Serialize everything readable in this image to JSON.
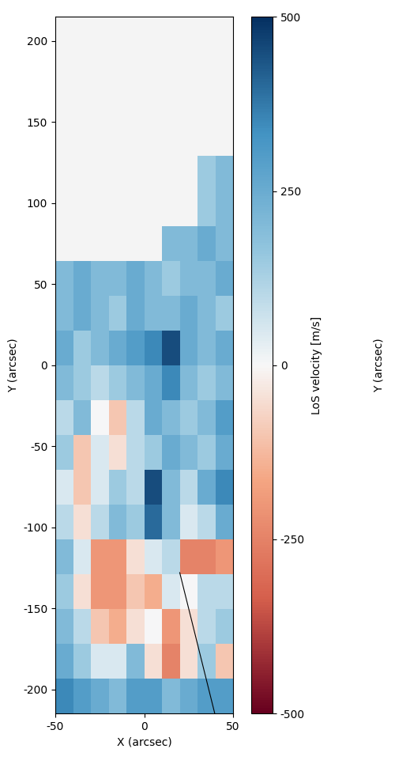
{
  "chart_data": {
    "type": "heatmap",
    "xlabel": "X (arcsec)",
    "ylabel": "Y (arcsec)",
    "xlim": [
      -50,
      50
    ],
    "xticks": [
      -50,
      0,
      50
    ],
    "ylim": [
      -215,
      215
    ],
    "yticks": [
      -200,
      -150,
      -100,
      -50,
      0,
      50,
      100,
      150,
      200
    ],
    "x_edges": [
      -50,
      -40,
      -30,
      -20,
      -10,
      0,
      10,
      20,
      30,
      40,
      50
    ],
    "y_edges": [
      -215,
      -193.5,
      -172,
      -150.5,
      -129,
      -107.5,
      -86,
      -64.5,
      -43,
      -21.5,
      0,
      21.5,
      43,
      64.5,
      86,
      107.5,
      129,
      150.5,
      172,
      193.5,
      215
    ],
    "cells": [
      [
        350,
        300,
        250,
        200,
        300,
        300,
        200,
        250,
        300,
        300
      ],
      [
        250,
        150,
        50,
        50,
        200,
        -50,
        -250,
        -50,
        150,
        -100
      ],
      [
        200,
        100,
        -100,
        -150,
        -50,
        0,
        -200,
        -50,
        100,
        150
      ],
      [
        150,
        -50,
        -200,
        -200,
        -100,
        -150,
        50,
        0,
        100,
        100
      ],
      [
        200,
        50,
        -200,
        -200,
        -50,
        50,
        100,
        -250,
        -250,
        -200
      ],
      [
        100,
        -50,
        100,
        200,
        150,
        400,
        200,
        50,
        100,
        250
      ],
      [
        50,
        -100,
        50,
        150,
        100,
        450,
        200,
        100,
        250,
        350
      ],
      [
        150,
        -100,
        50,
        -50,
        100,
        150,
        250,
        200,
        150,
        250
      ],
      [
        100,
        200,
        0,
        -100,
        100,
        250,
        200,
        150,
        200,
        300
      ],
      [
        200,
        150,
        100,
        150,
        200,
        250,
        350,
        200,
        150,
        200
      ],
      [
        250,
        150,
        200,
        250,
        300,
        350,
        450,
        250,
        200,
        250
      ],
      [
        200,
        250,
        200,
        150,
        250,
        200,
        200,
        250,
        200,
        150
      ],
      [
        200,
        250,
        200,
        200,
        250,
        200,
        150,
        200,
        200,
        250
      ],
      [
        null,
        null,
        null,
        null,
        null,
        null,
        200,
        200,
        250,
        200
      ],
      [
        null,
        null,
        null,
        null,
        null,
        null,
        null,
        null,
        150,
        200
      ],
      [
        null,
        null,
        null,
        null,
        null,
        null,
        null,
        null,
        150,
        200
      ],
      [
        null,
        null,
        null,
        null,
        null,
        null,
        null,
        null,
        null,
        null
      ],
      [
        null,
        null,
        null,
        null,
        null,
        null,
        null,
        null,
        null,
        null
      ],
      [
        null,
        null,
        null,
        null,
        null,
        null,
        null,
        null,
        null,
        null
      ],
      [
        null,
        null,
        null,
        null,
        null,
        null,
        null,
        null,
        null,
        null
      ]
    ],
    "colorbar_label": "LoS velocity [m/s]",
    "colorbar_label2": "Y (arcsec)",
    "colorbar_range": [
      -500,
      500
    ],
    "colorbar_ticks": [
      -500,
      -250,
      0,
      250,
      500
    ],
    "line": {
      "x": [
        20,
        59
      ],
      "y": [
        -128,
        -300
      ],
      "color": "#000000"
    }
  }
}
